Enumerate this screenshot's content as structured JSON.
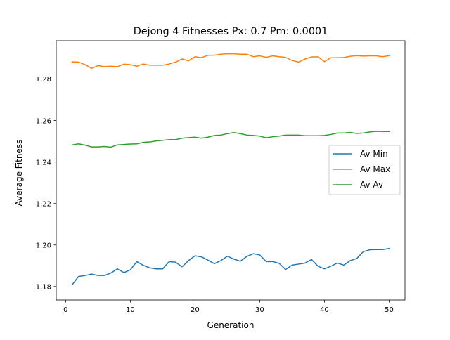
{
  "chart_data": {
    "type": "line",
    "title": "Dejong 4 Fitnesses Px: 0.7 Pm: 0.0001",
    "xlabel": "Generation",
    "ylabel": "Average Fitness",
    "xlim": [
      -1.45,
      52.45
    ],
    "ylim": [
      1.1735,
      1.2985
    ],
    "x_ticks": [
      0,
      10,
      20,
      30,
      40,
      50
    ],
    "y_ticks": [
      1.18,
      1.2,
      1.22,
      1.24,
      1.26,
      1.28
    ],
    "x_tick_labels": [
      "0",
      "10",
      "20",
      "30",
      "40",
      "50"
    ],
    "y_tick_labels": [
      "1.18",
      "1.20",
      "1.22",
      "1.24",
      "1.26",
      "1.28"
    ],
    "grid": false,
    "legend_position": "center-right",
    "x": [
      1,
      2,
      3,
      4,
      5,
      6,
      7,
      8,
      9,
      10,
      11,
      12,
      13,
      14,
      15,
      16,
      17,
      18,
      19,
      20,
      21,
      22,
      23,
      24,
      25,
      26,
      27,
      28,
      29,
      30,
      31,
      32,
      33,
      34,
      35,
      36,
      37,
      38,
      39,
      40,
      41,
      42,
      43,
      44,
      45,
      46,
      47,
      48,
      49,
      50
    ],
    "series": [
      {
        "name": "Av Min",
        "color": "#1f77b4",
        "values": [
          1.1808,
          1.1848,
          1.1853,
          1.186,
          1.1853,
          1.1853,
          1.1865,
          1.1885,
          1.1867,
          1.188,
          1.192,
          1.1902,
          1.189,
          1.1885,
          1.1885,
          1.192,
          1.1917,
          1.1895,
          1.1925,
          1.1948,
          1.1943,
          1.1927,
          1.191,
          1.1925,
          1.1946,
          1.1932,
          1.1922,
          1.1945,
          1.1958,
          1.1952,
          1.192,
          1.192,
          1.1912,
          1.1882,
          1.1903,
          1.1908,
          1.1913,
          1.193,
          1.1898,
          1.1885,
          1.1898,
          1.1913,
          1.1903,
          1.1925,
          1.1935,
          1.1968,
          1.1977,
          1.1978,
          1.1978,
          1.1983
        ]
      },
      {
        "name": "Av Max",
        "color": "#ff7f0e",
        "values": [
          1.2883,
          1.2882,
          1.287,
          1.2852,
          1.2865,
          1.286,
          1.2862,
          1.286,
          1.2872,
          1.287,
          1.2862,
          1.2873,
          1.2867,
          1.2867,
          1.2867,
          1.2873,
          1.2882,
          1.2897,
          1.2888,
          1.2908,
          1.2903,
          1.2915,
          1.2915,
          1.292,
          1.2922,
          1.2922,
          1.292,
          1.292,
          1.2908,
          1.2912,
          1.2905,
          1.2912,
          1.2908,
          1.2905,
          1.289,
          1.2882,
          1.2897,
          1.2907,
          1.2907,
          1.2884,
          1.2903,
          1.2903,
          1.2904,
          1.291,
          1.2913,
          1.2911,
          1.2912,
          1.2912,
          1.2908,
          1.2913
        ]
      },
      {
        "name": "Av Av",
        "color": "#2ca02c",
        "values": [
          1.2483,
          1.2488,
          1.2482,
          1.2473,
          1.2473,
          1.2475,
          1.2472,
          1.2483,
          1.2485,
          1.2487,
          1.2488,
          1.2495,
          1.2497,
          1.2502,
          1.2505,
          1.2508,
          1.2508,
          1.2515,
          1.2518,
          1.252,
          1.2515,
          1.252,
          1.2528,
          1.253,
          1.2537,
          1.2542,
          1.2537,
          1.253,
          1.2528,
          1.2525,
          1.2517,
          1.2522,
          1.2525,
          1.253,
          1.253,
          1.253,
          1.2527,
          1.2527,
          1.2527,
          1.2528,
          1.2533,
          1.254,
          1.254,
          1.2543,
          1.2538,
          1.254,
          1.2545,
          1.2548,
          1.2547,
          1.2547
        ]
      }
    ]
  }
}
